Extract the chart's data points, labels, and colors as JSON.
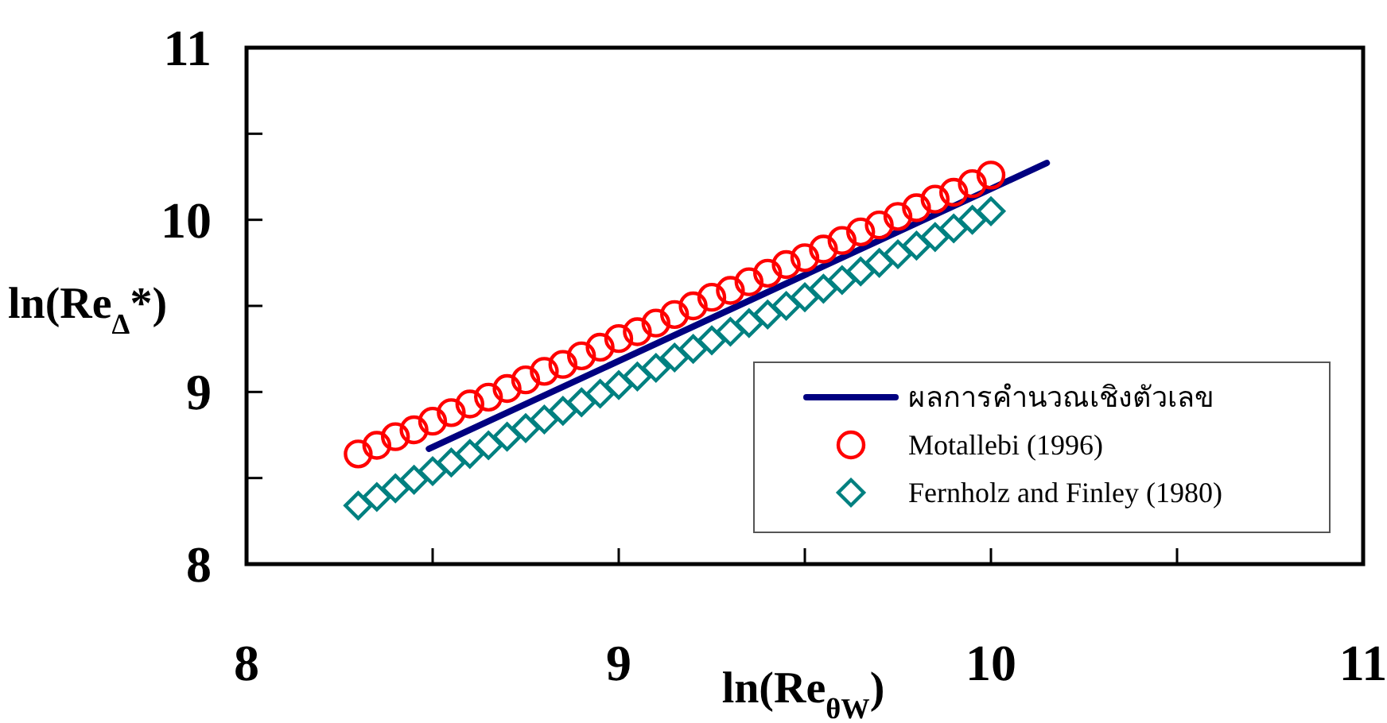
{
  "chart_data": {
    "type": "scatter",
    "xlabel": "ln(Re$_{θW}$)",
    "ylabel": "ln(Re$_{Δ}$*)",
    "xlim": [
      8,
      11
    ],
    "ylim": [
      8,
      11
    ],
    "xticks": [
      8,
      {
        "value": 8.5,
        "label": null
      },
      9,
      {
        "value": 9.5,
        "label": null
      },
      10,
      {
        "value": 10.5,
        "label": null
      },
      11
    ],
    "yticks": [
      8,
      {
        "value": 8.5,
        "label": null
      },
      9,
      {
        "value": 9.5,
        "label": null
      },
      10,
      {
        "value": 10.5,
        "label": null
      },
      11
    ],
    "legend": "bottom right",
    "series": [
      {
        "name": "ผลการคำนวณเชิงตัวเลข",
        "type": "line",
        "color": "#000080",
        "x": [
          8.49,
          10.15
        ],
        "values": [
          8.67,
          10.33
        ]
      },
      {
        "name": "Motallebi (1996)",
        "marker": "circle",
        "color": "#ff0000",
        "x": [
          8.3,
          8.35,
          8.4,
          8.45,
          8.5,
          8.55,
          8.6,
          8.65,
          8.7,
          8.75,
          8.8,
          8.85,
          8.9,
          8.95,
          9.0,
          9.05,
          9.1,
          9.15,
          9.2,
          9.25,
          9.3,
          9.35,
          9.4,
          9.45,
          9.5,
          9.55,
          9.6,
          9.65,
          9.7,
          9.75,
          9.8,
          9.85,
          9.9,
          9.95,
          10.0
        ],
        "values": [
          8.64,
          8.69,
          8.74,
          8.78,
          8.83,
          8.88,
          8.93,
          8.97,
          9.02,
          9.07,
          9.12,
          9.16,
          9.21,
          9.26,
          9.31,
          9.35,
          9.4,
          9.45,
          9.5,
          9.55,
          9.59,
          9.64,
          9.69,
          9.74,
          9.78,
          9.83,
          9.88,
          9.93,
          9.97,
          10.02,
          10.07,
          10.12,
          10.16,
          10.21,
          10.26
        ]
      },
      {
        "name": "Fernholz and Finley (1980)",
        "marker": "diamond",
        "color": "#008080",
        "x": [
          8.3,
          8.35,
          8.4,
          8.45,
          8.5,
          8.55,
          8.6,
          8.65,
          8.7,
          8.75,
          8.8,
          8.85,
          8.9,
          8.95,
          9.0,
          9.05,
          9.1,
          9.15,
          9.2,
          9.25,
          9.3,
          9.35,
          9.4,
          9.45,
          9.5,
          9.55,
          9.6,
          9.65,
          9.7,
          9.75,
          9.8,
          9.85,
          9.9,
          9.95,
          10.0
        ],
        "values": [
          8.34,
          8.39,
          8.44,
          8.49,
          8.54,
          8.59,
          8.64,
          8.69,
          8.74,
          8.79,
          8.84,
          8.89,
          8.94,
          8.99,
          9.04,
          9.09,
          9.14,
          9.2,
          9.25,
          9.3,
          9.35,
          9.4,
          9.45,
          9.5,
          9.55,
          9.6,
          9.65,
          9.7,
          9.75,
          9.8,
          9.85,
          9.9,
          9.95,
          10.0,
          10.05
        ]
      }
    ]
  }
}
